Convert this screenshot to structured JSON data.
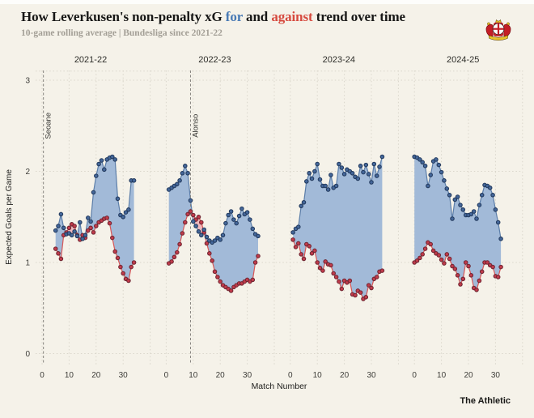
{
  "header": {
    "title_prefix": "How Leverkusen's non-penalty xG ",
    "title_for": "for",
    "title_mid": " and ",
    "title_against": "against",
    "title_suffix": " trend over time",
    "subtitle": "10-game rolling average | Bundesliga since 2021-22"
  },
  "footer": {
    "brand": "The Athletic"
  },
  "logo": {
    "name": "bayer-leverkusen-crest"
  },
  "colors": {
    "background": "#f5f2e9",
    "title_for": "#4779b4",
    "title_against": "#d64a3f",
    "for_line": "#5c7ea9",
    "for_dot": "#44679a",
    "for_dot_ring": "#22395c",
    "for_fill": "#a2bad8",
    "against_line": "#d95757",
    "against_dot": "#c23b4b",
    "against_dot_ring": "#6e2531",
    "against_fill": "#f0b9bd",
    "grid": "#dad6cb",
    "dashed_line": "#85837e",
    "tick_text": "#3d3c38",
    "axis_text": "#1f1f1d",
    "facet_text": "#2e2e2a"
  },
  "chart_data": {
    "type": "line",
    "title": "How Leverkusen's non-penalty xG for and against trend over time",
    "subtitle": "10-game rolling average | Bundesliga since 2021-22",
    "xlabel": "Match Number",
    "ylabel": "Expected Goals per Game",
    "ylim": [
      -0.15,
      3.1
    ],
    "yticks": [
      0,
      1,
      2,
      3
    ],
    "xticks": [
      0,
      10,
      20,
      30
    ],
    "grid": true,
    "series_names": [
      "xG for",
      "xG against"
    ],
    "facets": [
      {
        "label": "2021-22",
        "annotation": {
          "label": "Seoane",
          "match": 0.5
        },
        "x_start": 5,
        "for": [
          1.35,
          1.4,
          1.53,
          1.38,
          1.31,
          1.32,
          1.3,
          1.34,
          1.29,
          1.44,
          1.26,
          1.3,
          1.49,
          1.45,
          1.77,
          1.95,
          2.08,
          2.12,
          2.02,
          2.13,
          2.15,
          2.16,
          2.13,
          1.7,
          1.52,
          1.5,
          1.55,
          1.58,
          1.9,
          1.9
        ],
        "against": [
          1.15,
          1.1,
          1.04,
          1.3,
          1.33,
          1.38,
          1.42,
          1.4,
          1.3,
          1.25,
          1.3,
          1.27,
          1.35,
          1.38,
          1.33,
          1.4,
          1.44,
          1.46,
          1.48,
          1.49,
          1.43,
          1.27,
          1.12,
          1.05,
          0.95,
          0.88,
          0.82,
          0.8,
          0.95,
          1.0
        ]
      },
      {
        "label": "2022-23",
        "annotation": {
          "label": "Alonso",
          "match": 9
        },
        "x_start": 1,
        "for": [
          1.8,
          1.82,
          1.84,
          1.86,
          1.9,
          1.98,
          2.06,
          1.98,
          1.68,
          1.45,
          1.4,
          1.34,
          1.3,
          1.36,
          1.28,
          1.24,
          1.22,
          1.24,
          1.27,
          1.25,
          1.3,
          1.43,
          1.52,
          1.56,
          1.47,
          1.43,
          1.51,
          1.59,
          1.53,
          1.55,
          1.47,
          1.37,
          1.31,
          1.29
        ],
        "against": [
          0.99,
          1.01,
          1.06,
          1.11,
          1.2,
          1.32,
          1.44,
          1.53,
          1.56,
          1.52,
          1.47,
          1.5,
          1.44,
          1.33,
          1.21,
          1.1,
          1.02,
          0.9,
          0.84,
          0.79,
          0.75,
          0.73,
          0.71,
          0.69,
          0.73,
          0.75,
          0.77,
          0.77,
          0.79,
          0.81,
          0.79,
          0.81,
          1.0,
          1.07
        ]
      },
      {
        "label": "2023-24",
        "annotation": null,
        "x_start": 1,
        "for": [
          1.33,
          1.37,
          1.39,
          1.62,
          1.66,
          1.89,
          1.98,
          1.92,
          2.0,
          2.08,
          1.91,
          1.84,
          1.84,
          1.8,
          1.96,
          1.82,
          1.84,
          2.08,
          2.04,
          1.97,
          2.02,
          2.0,
          1.98,
          1.94,
          1.92,
          2.06,
          1.99,
          2.07,
          1.97,
          1.88,
          2.08,
          1.95,
          2.05,
          2.16
        ],
        "against": [
          1.25,
          1.17,
          1.21,
          1.09,
          1.04,
          1.2,
          1.18,
          1.1,
          1.13,
          1.0,
          0.94,
          0.91,
          1.01,
          0.98,
          0.97,
          0.88,
          0.84,
          0.79,
          0.71,
          0.8,
          0.78,
          0.8,
          0.65,
          0.64,
          0.69,
          0.67,
          0.6,
          0.62,
          0.75,
          0.72,
          0.82,
          0.84,
          0.9,
          0.91
        ]
      },
      {
        "label": "2024-25",
        "annotation": null,
        "x_start": 0,
        "for": [
          2.16,
          2.15,
          2.13,
          2.1,
          2.06,
          1.84,
          1.96,
          2.11,
          2.13,
          2.07,
          1.99,
          1.9,
          1.81,
          1.74,
          1.48,
          1.69,
          1.72,
          1.63,
          1.58,
          1.52,
          1.52,
          1.53,
          1.56,
          1.48,
          1.63,
          1.74,
          1.85,
          1.84,
          1.82,
          1.74,
          1.58,
          1.44,
          1.26
        ],
        "against": [
          1.0,
          1.02,
          1.05,
          1.09,
          1.15,
          1.22,
          1.2,
          1.13,
          1.1,
          1.08,
          1.03,
          0.99,
          1.09,
          1.04,
          0.96,
          0.93,
          0.86,
          0.76,
          0.82,
          1.0,
          0.96,
          0.86,
          0.72,
          0.7,
          0.8,
          0.9,
          1.0,
          1.0,
          0.97,
          0.95,
          0.85,
          0.84,
          0.95
        ]
      }
    ]
  }
}
